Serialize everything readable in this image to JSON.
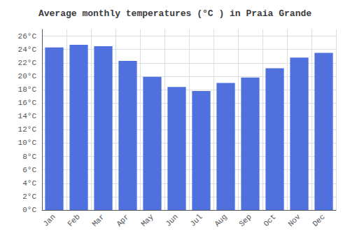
{
  "chart_data": {
    "type": "bar",
    "title": "Average monthly temperatures (°C ) in Praia Grande",
    "categories": [
      "Jan",
      "Feb",
      "Mar",
      "Apr",
      "May",
      "Jun",
      "Jul",
      "Aug",
      "Sep",
      "Oct",
      "Nov",
      "Dec"
    ],
    "values": [
      24.3,
      24.7,
      24.5,
      22.3,
      19.9,
      18.4,
      17.8,
      19.0,
      19.8,
      21.2,
      22.8,
      23.5
    ],
    "ylim": [
      0,
      27
    ],
    "yticks": [
      {
        "value": 0,
        "label": "0°C"
      },
      {
        "value": 2,
        "label": "2°C"
      },
      {
        "value": 4,
        "label": "4°C"
      },
      {
        "value": 6,
        "label": "6°C"
      },
      {
        "value": 8,
        "label": "8°C"
      },
      {
        "value": 10,
        "label": "10°C"
      },
      {
        "value": 12,
        "label": "12°C"
      },
      {
        "value": 14,
        "label": "14°C"
      },
      {
        "value": 16,
        "label": "16°C"
      },
      {
        "value": 18,
        "label": "18°C"
      },
      {
        "value": 20,
        "label": "20°C"
      },
      {
        "value": 22,
        "label": "22°C"
      },
      {
        "value": 24,
        "label": "24°C"
      },
      {
        "value": 26,
        "label": "26°C"
      }
    ],
    "grid": true
  }
}
